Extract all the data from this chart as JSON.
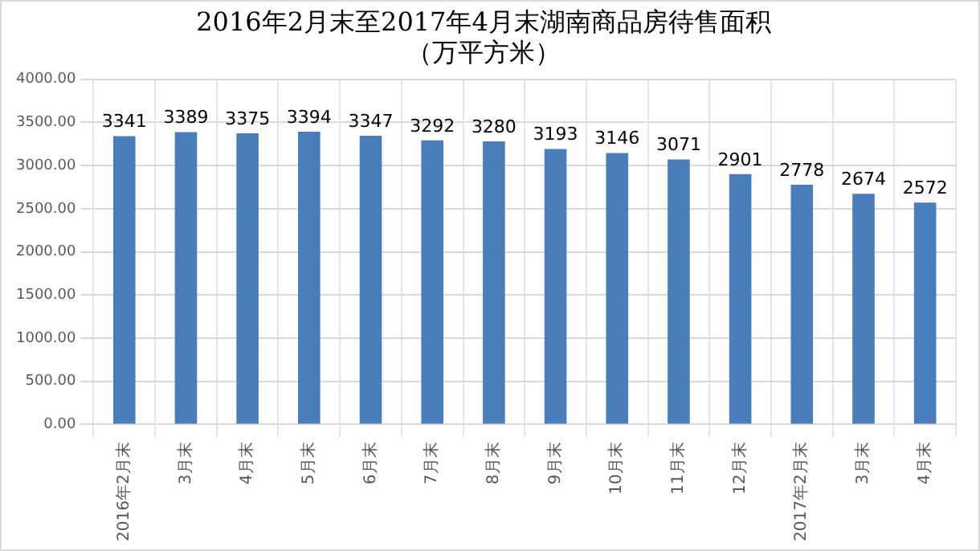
{
  "chart_data": {
    "type": "bar",
    "title": [
      "2016年2月末至2017年4月末湖南商品房待售面积",
      "（万平方米）"
    ],
    "categories": [
      "2016年2月末",
      "3月末",
      "4月末",
      "5月末",
      "6月末",
      "7月末",
      "8月末",
      "9月末",
      "10月末",
      "11月末",
      "12月末",
      "2017年2月末",
      "3月末",
      "4月末"
    ],
    "values": [
      3341,
      3389,
      3375,
      3394,
      3347,
      3292,
      3280,
      3193,
      3146,
      3071,
      2901,
      2778,
      2674,
      2572
    ],
    "color": "#4a7ebb",
    "ylim": [
      0,
      4000
    ],
    "yticks": [
      {
        "value": 0,
        "label": "0.00"
      },
      {
        "value": 500,
        "label": "500.00"
      },
      {
        "value": 1000,
        "label": "1000.00"
      },
      {
        "value": 1500,
        "label": "1500.00"
      },
      {
        "value": 2000,
        "label": "2000.00"
      },
      {
        "value": 2500,
        "label": "2500.00"
      },
      {
        "value": 3000,
        "label": "3000.00"
      },
      {
        "value": 3500,
        "label": "3500.00"
      },
      {
        "value": 4000,
        "label": "4000.00"
      }
    ],
    "grid": true,
    "data_labels": true,
    "legend": false
  }
}
